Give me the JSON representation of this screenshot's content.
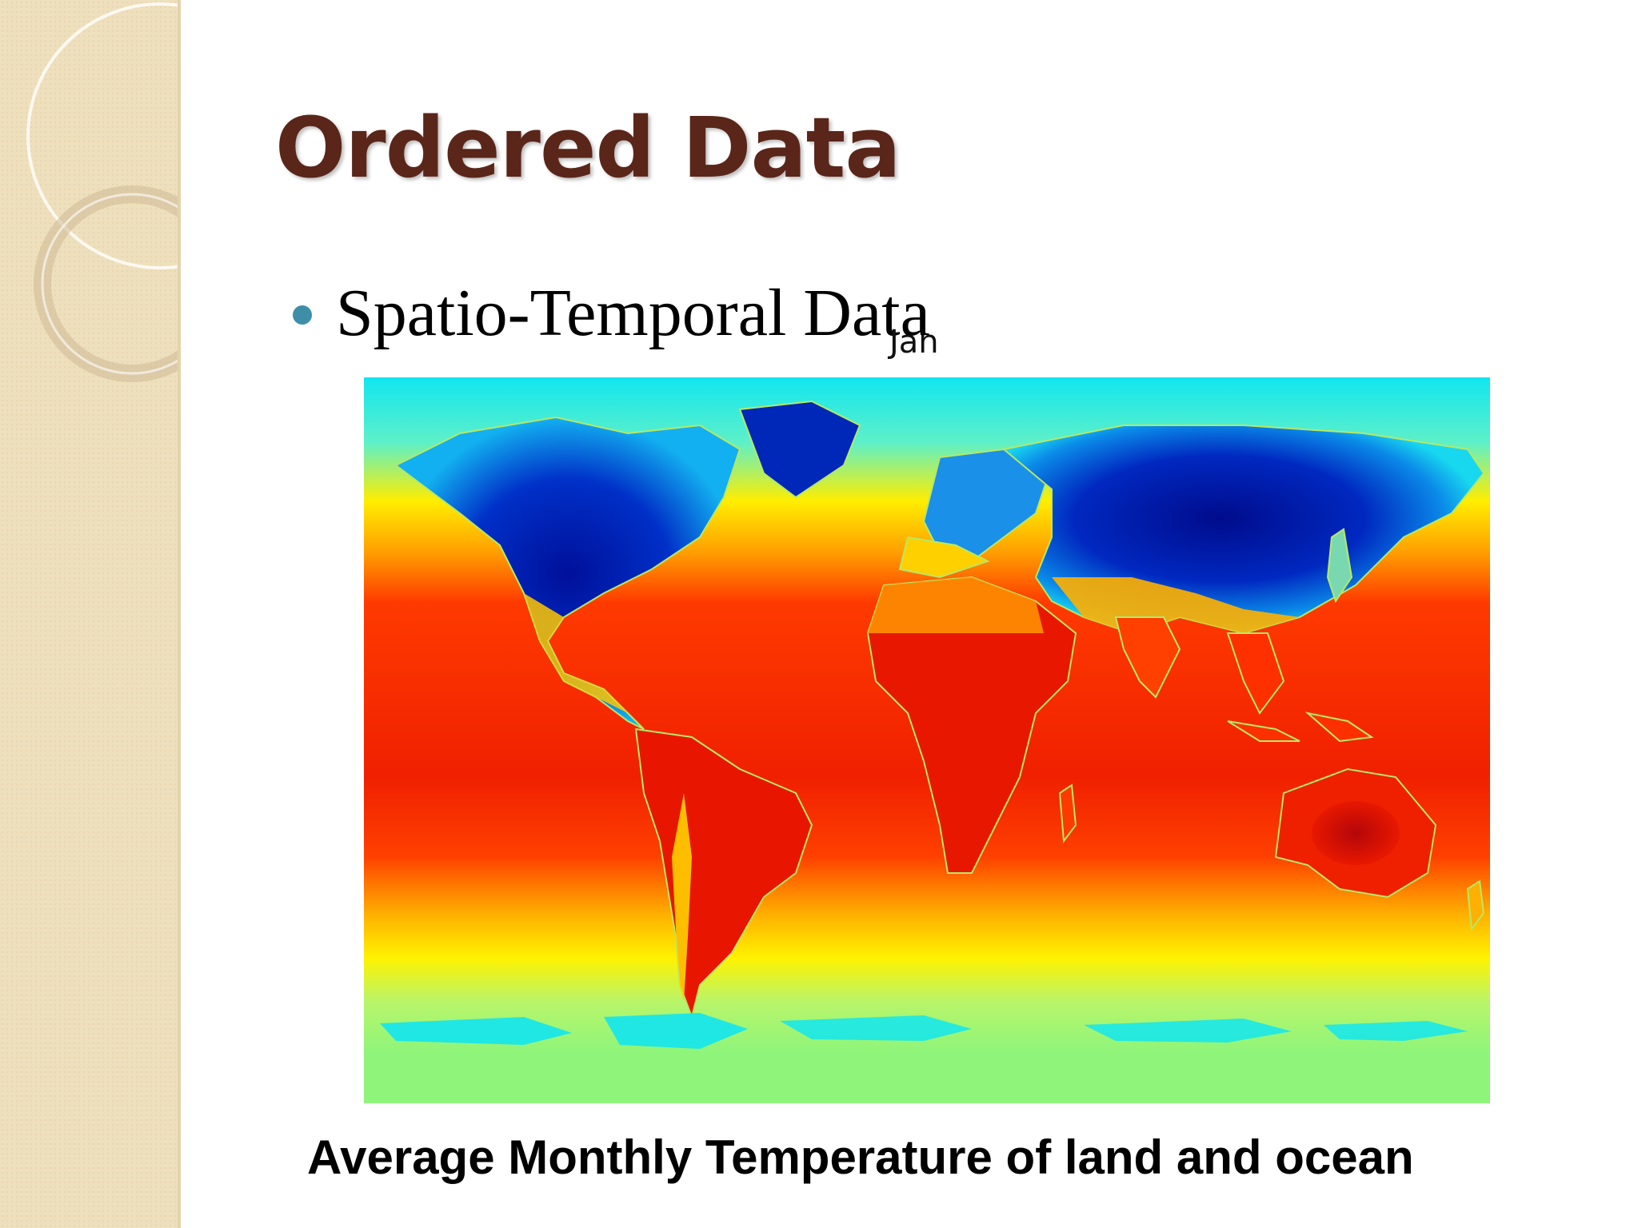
{
  "slide": {
    "title": "Ordered Data",
    "bullet": "Spatio-Temporal Data",
    "month_label": "Jan",
    "caption": "Average Monthly Temperature of land and ocean"
  },
  "colors": {
    "title": "#5a2619",
    "bullet": "#3e8ea8",
    "side_panel": "#efe0bd",
    "cold": "#00109a",
    "cool": "#12e6f0",
    "mild": "#8ff57a",
    "warm": "#ffee00",
    "hot": "#ff2a00",
    "hottest": "#b5060a",
    "coastline": "#b7e864"
  }
}
